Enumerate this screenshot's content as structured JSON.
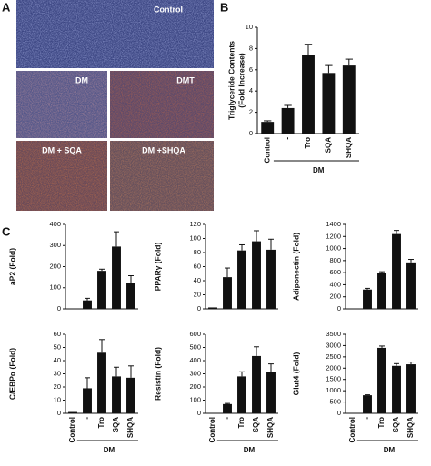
{
  "panel_labels": [
    "A",
    "B",
    "C"
  ],
  "micrographs": [
    "Control",
    "DM",
    "DMT",
    "DM + SQA",
    "DM +SHQA"
  ],
  "chart_data": [
    {
      "type": "bar",
      "y_label": [
        "Triglyceride Contents",
        "(Fold Increase)"
      ],
      "categories": [
        "Control",
        "-",
        "Tro",
        "SQA",
        "SHQA"
      ],
      "group_label": "DM",
      "color": "#111111",
      "values": [
        1.1,
        2.4,
        7.4,
        5.7,
        6.4
      ],
      "errors": [
        0.1,
        0.25,
        1.0,
        0.7,
        0.6
      ],
      "ylim": [
        0,
        10
      ],
      "yticks": [
        0,
        2,
        4,
        6,
        8,
        10
      ]
    },
    {
      "type": "bar",
      "y_label": [
        "aP2 (Fold)"
      ],
      "color": "#111111",
      "values": [
        2,
        40,
        180,
        295,
        122
      ],
      "errors": [
        0,
        10,
        8,
        70,
        35
      ],
      "ylim": [
        0,
        400
      ],
      "yticks": [
        0,
        100,
        200,
        300,
        400
      ]
    },
    {
      "type": "bar",
      "y_label": [
        "PPARγ (Fold)"
      ],
      "color": "#111111",
      "values": [
        2,
        45,
        83,
        96,
        84
      ],
      "errors": [
        0,
        13,
        8,
        15,
        15
      ],
      "ylim": [
        0,
        120
      ],
      "yticks": [
        0,
        20,
        40,
        60,
        80,
        100,
        120
      ]
    },
    {
      "type": "bar",
      "y_label": [
        "Adiponectin (Fold)"
      ],
      "color": "#111111",
      "values": [
        5,
        320,
        600,
        1240,
        770
      ],
      "errors": [
        0,
        20,
        15,
        60,
        50
      ],
      "ylim": [
        0,
        1400
      ],
      "yticks": [
        0,
        200,
        400,
        600,
        800,
        1000,
        1200,
        1400
      ]
    },
    {
      "type": "bar",
      "y_label": [
        "C/EBPα (Fold)"
      ],
      "categories": [
        "Control",
        "-",
        "Tro",
        "SQA",
        "SHQA"
      ],
      "group_label": "DM",
      "color": "#111111",
      "values": [
        1,
        19,
        46,
        28,
        27
      ],
      "errors": [
        0,
        8,
        10,
        7,
        9
      ],
      "ylim": [
        0,
        60
      ],
      "yticks": [
        0,
        10,
        20,
        30,
        40,
        50,
        60
      ]
    },
    {
      "type": "bar",
      "y_label": [
        "Resistin (Fold)"
      ],
      "categories": [
        "Control",
        "-",
        "Tro",
        "SQA",
        "SHQA"
      ],
      "group_label": "DM",
      "color": "#111111",
      "values": [
        2,
        70,
        280,
        435,
        315
      ],
      "errors": [
        0,
        5,
        35,
        70,
        60
      ],
      "ylim": [
        0,
        600
      ],
      "yticks": [
        0,
        100,
        200,
        300,
        400,
        500,
        600
      ]
    },
    {
      "type": "bar",
      "y_label": [
        "Glut4 (Fold)"
      ],
      "categories": [
        "Control",
        "-",
        "Tro",
        "SQA",
        "SHQA"
      ],
      "group_label": "DM",
      "color": "#111111",
      "values": [
        10,
        800,
        2900,
        2100,
        2170
      ],
      "errors": [
        0,
        20,
        80,
        100,
        100
      ],
      "ylim": [
        0,
        3500
      ],
      "yticks": [
        0,
        500,
        1000,
        1500,
        2000,
        2500,
        3000,
        3500
      ]
    }
  ]
}
